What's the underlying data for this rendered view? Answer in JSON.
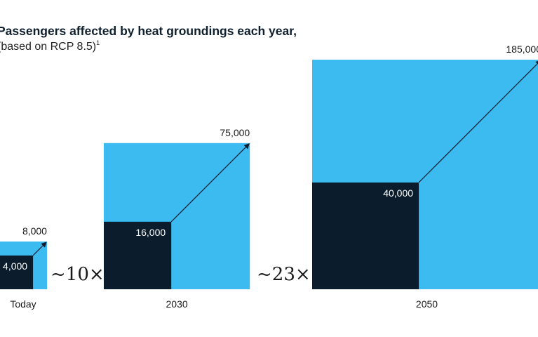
{
  "chart_data": {
    "type": "area",
    "title": "Passengers affected by heat groundings each year,",
    "subtitle": "based on RCP 8.5)",
    "subtitle_note": "1",
    "colors": {
      "outer": "#3bbbf0",
      "inner": "#0b1c2c",
      "arrow": "#0b1c2c"
    },
    "groups": [
      {
        "category": "Today",
        "outer_value": 8000,
        "outer_label": "8,000",
        "inner_value": 4000,
        "inner_label": "4,000"
      },
      {
        "category": "2030",
        "outer_value": 75000,
        "outer_label": "75,000",
        "inner_value": 16000,
        "inner_label": "16,000"
      },
      {
        "category": "2050",
        "outer_value": 185000,
        "outer_label": "185,000",
        "inner_value": 40000,
        "inner_label": "40,000"
      }
    ],
    "multipliers": [
      "~10×",
      "~23×"
    ]
  }
}
